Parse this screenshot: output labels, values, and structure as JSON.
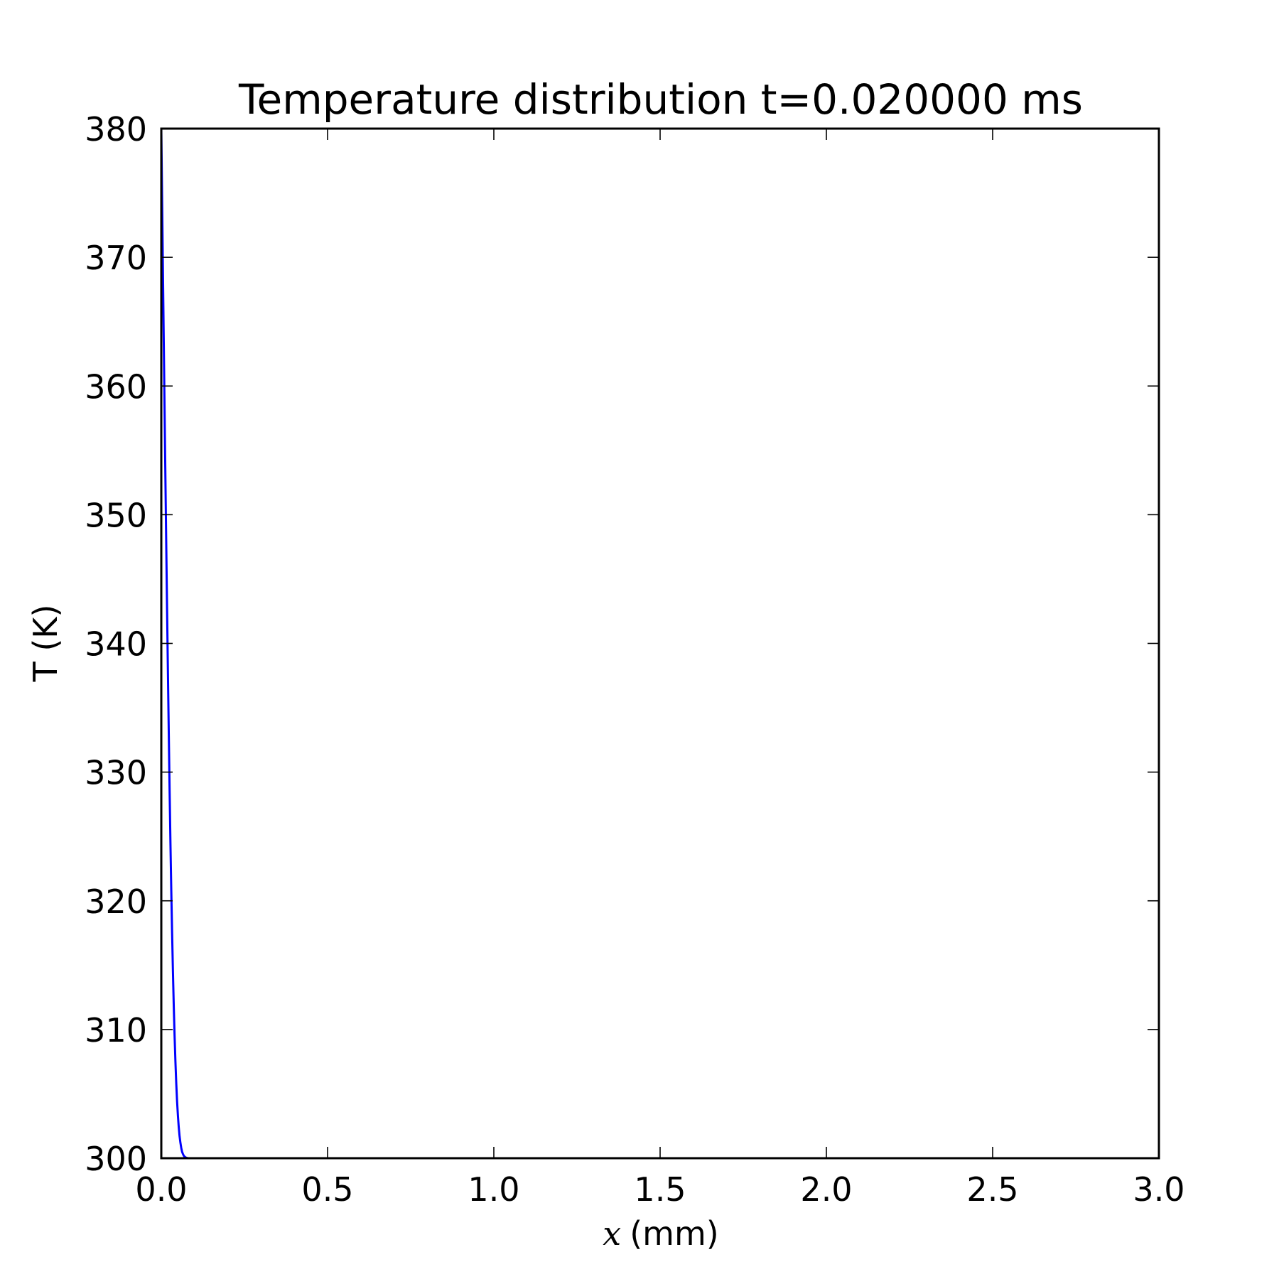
{
  "chart_data": {
    "type": "line",
    "title": "Temperature distribution t=0.020000 ms",
    "xlabel": {
      "var": "x",
      "unit": "(mm)"
    },
    "ylabel": "T (K)",
    "xlim": [
      0.0,
      3.0
    ],
    "ylim": [
      300,
      380
    ],
    "xticks": [
      0.0,
      0.5,
      1.0,
      1.5,
      2.0,
      2.5,
      3.0
    ],
    "xtick_labels": [
      "0.0",
      "0.5",
      "1.0",
      "1.5",
      "2.0",
      "2.5",
      "3.0"
    ],
    "yticks": [
      300,
      310,
      320,
      330,
      340,
      350,
      360,
      370,
      380
    ],
    "ytick_labels": [
      "300",
      "310",
      "320",
      "330",
      "340",
      "350",
      "360",
      "370",
      "380"
    ],
    "grid": false,
    "series": [
      {
        "color": "#0000ff",
        "x": [
          0.0,
          0.0025,
          0.005,
          0.0075,
          0.01,
          0.0125,
          0.015,
          0.0175,
          0.02,
          0.0225,
          0.025,
          0.0275,
          0.03,
          0.0325,
          0.035,
          0.0375,
          0.04,
          0.0425,
          0.045,
          0.0475,
          0.05,
          0.0525,
          0.055,
          0.0575,
          0.06,
          0.0625,
          0.065,
          0.0675,
          0.07,
          0.0725,
          0.075,
          0.0775,
          0.08,
          0.085,
          0.09,
          0.095,
          0.1,
          0.11,
          0.12,
          0.15,
          0.2,
          0.5,
          1.0,
          2.0,
          3.0
        ],
        "y": [
          380.0,
          374.4,
          368.8,
          363.3,
          357.9,
          352.6,
          347.4,
          342.4,
          337.6,
          333.0,
          328.6,
          324.5,
          320.8,
          317.5,
          314.5,
          311.8,
          309.5,
          307.5,
          305.8,
          304.4,
          303.3,
          302.4,
          301.7,
          301.2,
          300.8,
          300.5,
          300.33,
          300.2,
          300.12,
          300.07,
          300.04,
          300.02,
          300.01,
          300.0,
          300.0,
          300.0,
          300.0,
          300.0,
          300.0,
          300.0,
          300.0,
          300.0,
          300.0,
          300.0,
          300.0
        ]
      }
    ]
  }
}
